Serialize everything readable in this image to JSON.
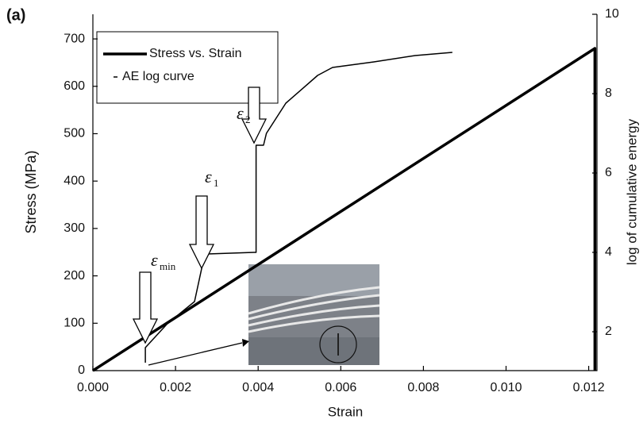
{
  "chart_data": {
    "type": "line",
    "panel_label": "(a)",
    "x_label": "Strain",
    "y_label": "Stress (MPa)",
    "y2_label": "log of cumulative energy",
    "xlim": [
      0,
      0.0122
    ],
    "ylim": [
      0,
      752
    ],
    "y2lim": [
      1.02,
      10
    ],
    "xticks": [
      {
        "value": 0,
        "label": "0.000"
      },
      {
        "value": 0.002,
        "label": "0.002"
      },
      {
        "value": 0.004,
        "label": "0.004"
      },
      {
        "value": 0.006,
        "label": "0.006"
      },
      {
        "value": 0.008,
        "label": "0.008"
      },
      {
        "value": 0.01,
        "label": "0.010"
      },
      {
        "value": 0.012,
        "label": "0.012"
      }
    ],
    "yticks": [
      0,
      100,
      200,
      300,
      400,
      500,
      600,
      700
    ],
    "y2ticks": [
      2,
      4,
      6,
      8,
      10
    ],
    "series": [
      {
        "name": "Stress vs. Strain",
        "color": "#000000",
        "x": [
          0,
          0.01215,
          0.01215
        ],
        "values": [
          0,
          680,
          0
        ]
      },
      {
        "name": "AE log curve",
        "color": "#000000",
        "axis": "y2",
        "x": [
          0.00127,
          0.00127,
          0.0018,
          0.00246,
          0.0027,
          0.00278,
          0.0039,
          0.00395,
          0.00395,
          0.00413,
          0.0042,
          0.00467,
          0.00544,
          0.0058,
          0.0068,
          0.0078,
          0.0087
        ],
        "values": [
          1.22,
          1.6,
          2.2,
          2.76,
          3.92,
          3.96,
          4.0,
          4.0,
          6.7,
          6.7,
          7.0,
          7.76,
          8.46,
          8.66,
          8.8,
          8.96,
          9.04
        ]
      }
    ],
    "annotations": [
      {
        "symbol": "ε",
        "sub": "min"
      },
      {
        "symbol": "ε",
        "sub": "1"
      },
      {
        "symbol": "ε",
        "sub": "2"
      }
    ]
  }
}
